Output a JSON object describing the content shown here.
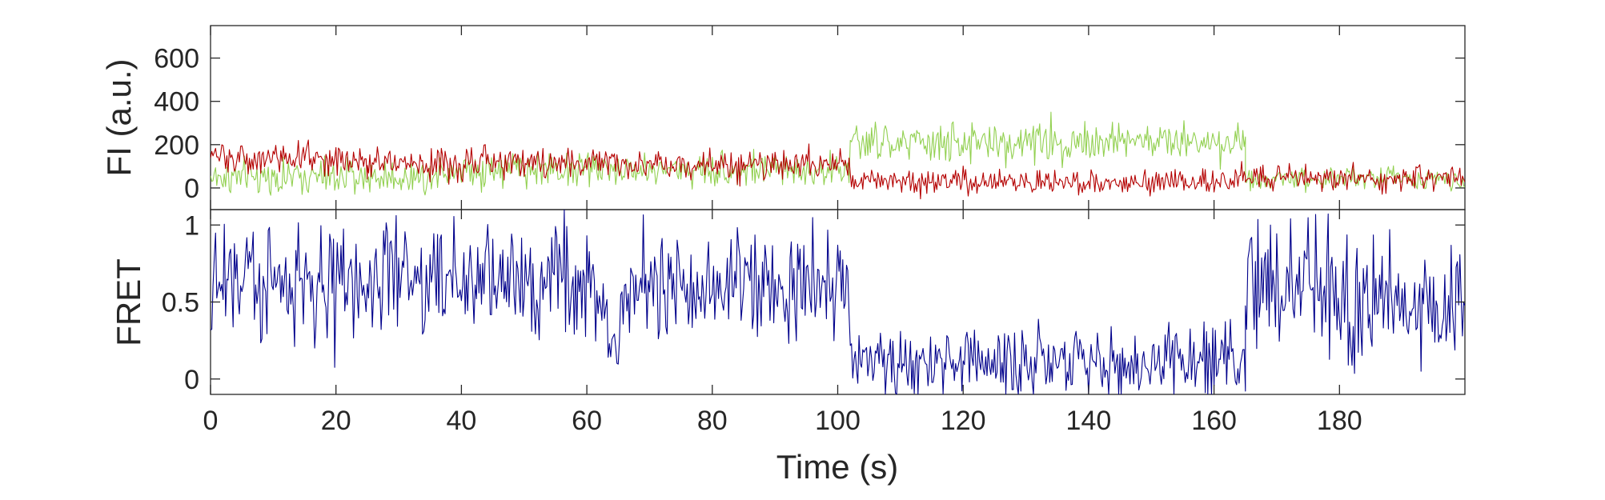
{
  "chart_data": [
    {
      "type": "line",
      "panel": "top",
      "title": "",
      "ylabel": "FI (a.u.)",
      "xlabel": "",
      "xlim": [
        0,
        200
      ],
      "ylim": [
        -100,
        750
      ],
      "yticks": [
        0,
        200,
        400,
        600
      ],
      "ytick_labels": [
        "0",
        "200",
        "400",
        "600"
      ],
      "grid": false,
      "x_step": 0.2,
      "colors": {
        "donor": "#92d050",
        "acceptor": "#b40000"
      },
      "series": [
        {
          "color": "#92d050",
          "segments": [
            {
              "x0": 0,
              "x1": 35,
              "mean": 50,
              "noise": 55
            },
            {
              "x0": 35,
              "x1": 62,
              "mean": 90,
              "noise": 65
            },
            {
              "x0": 62,
              "x1": 102,
              "mean": 85,
              "noise": 55
            },
            {
              "x0": 102,
              "x1": 128,
              "mean": 205,
              "noise": 65
            },
            {
              "x0": 128,
              "x1": 165,
              "mean": 215,
              "noise": 65
            },
            {
              "x0": 165,
              "x1": 200,
              "mean": 45,
              "noise": 40
            }
          ]
        },
        {
          "color": "#b40000",
          "segments": [
            {
              "x0": 0,
              "x1": 25,
              "mean": 140,
              "noise": 55
            },
            {
              "x0": 25,
              "x1": 62,
              "mean": 115,
              "noise": 55
            },
            {
              "x0": 62,
              "x1": 102,
              "mean": 110,
              "noise": 50
            },
            {
              "x0": 102,
              "x1": 165,
              "mean": 30,
              "noise": 40
            },
            {
              "x0": 165,
              "x1": 200,
              "mean": 45,
              "noise": 40
            }
          ]
        }
      ]
    },
    {
      "type": "line",
      "panel": "bottom",
      "title": "",
      "ylabel": "FRET",
      "xlabel": "Time (s)",
      "xlim": [
        0,
        200
      ],
      "ylim": [
        -0.1,
        1.1
      ],
      "yticks": [
        0,
        0.5,
        1
      ],
      "ytick_labels": [
        "0",
        "0.5",
        "1"
      ],
      "xticks": [
        0,
        20,
        40,
        60,
        80,
        100,
        120,
        140,
        160,
        180
      ],
      "xtick_labels": [
        "0",
        "20",
        "40",
        "60",
        "80",
        "100",
        "120",
        "140",
        "160",
        "180"
      ],
      "grid": false,
      "x_step": 0.2,
      "colors": {
        "fret": "#00008b"
      },
      "series": [
        {
          "color": "#00008b",
          "segments": [
            {
              "x0": 0,
              "x1": 62,
              "mean": 0.65,
              "noise": 0.28
            },
            {
              "x0": 62,
              "x1": 66,
              "mean": 0.35,
              "noise": 0.25
            },
            {
              "x0": 66,
              "x1": 102,
              "mean": 0.6,
              "noise": 0.25
            },
            {
              "x0": 102,
              "x1": 165,
              "mean": 0.12,
              "noise": 0.18
            },
            {
              "x0": 165,
              "x1": 200,
              "mean": 0.55,
              "noise": 0.3
            }
          ]
        }
      ]
    }
  ]
}
